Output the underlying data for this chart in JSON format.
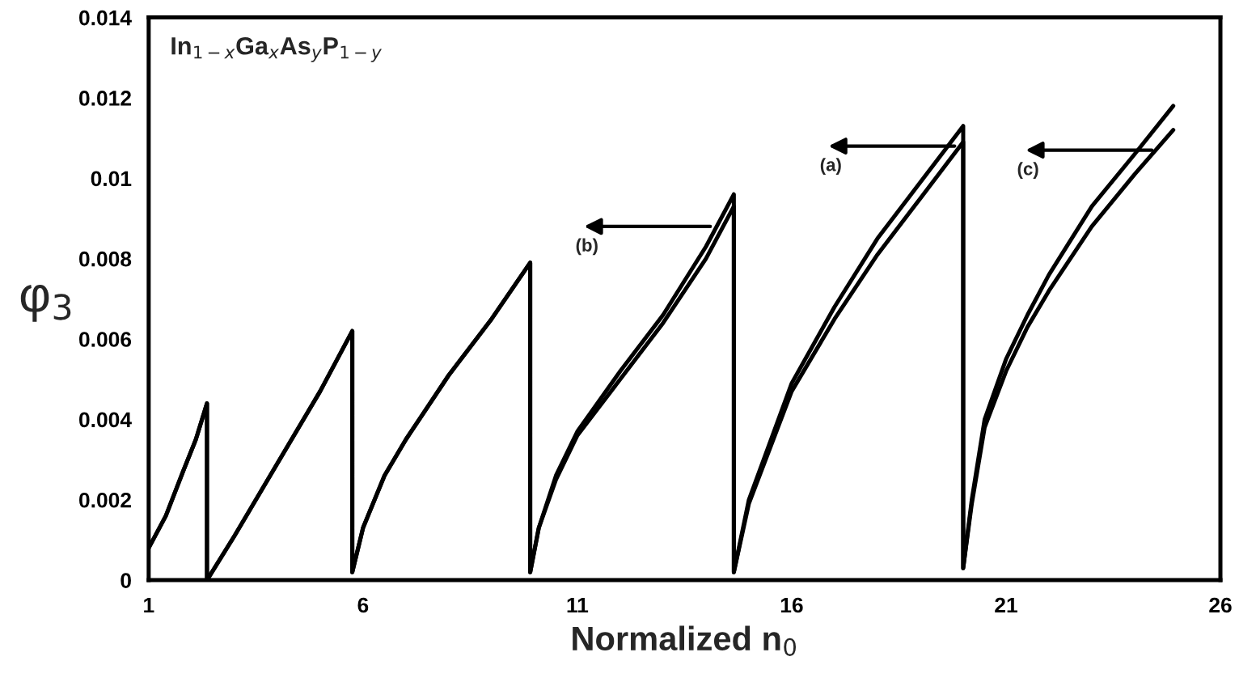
{
  "chart_data": {
    "type": "line",
    "xlabel": "Normalized n$_{0}$",
    "ylabel": "φ$_{3}$",
    "annotations": [
      "In$_{1−x}$Ga$_{x}$As$_{y}$P$_{1−y}$",
      {
        "text": "(a)",
        "x": 19.8,
        "y": 0.0108
      },
      {
        "text": "(b)",
        "x": 14.1,
        "y": 0.0088
      },
      {
        "text": "(c)",
        "x": 24.4,
        "y": 0.0107
      }
    ],
    "series": [
      {
        "color": "#000000",
        "x": [
          1,
          1.4,
          1.8,
          2.1,
          2.36,
          2.36,
          3,
          4,
          5,
          5.75,
          5.75,
          6,
          6.5,
          7,
          8,
          9,
          9.9,
          9.9,
          10.1,
          10.5,
          11,
          12,
          13,
          14,
          14.65,
          14.65,
          15,
          16,
          17,
          18,
          19,
          20,
          20,
          20.2,
          20.5,
          21,
          21.5,
          22,
          23,
          24,
          24.9
        ],
        "values": [
          0.0008,
          0.0016,
          0.0027,
          0.0035,
          0.0044,
          0,
          0.0011,
          0.0029,
          0.0047,
          0.0062,
          0.0002,
          0.0013,
          0.0026,
          0.0035,
          0.0051,
          0.0065,
          0.0079,
          0.0002,
          0.0013,
          0.0026,
          0.0037,
          0.0052,
          0.0066,
          0.0083,
          0.0096,
          0.0002,
          0.002,
          0.0049,
          0.0068,
          0.0085,
          0.0099,
          0.0113,
          0.0003,
          0.002,
          0.004,
          0.0055,
          0.0066,
          0.0076,
          0.0093,
          0.0106,
          0.0118
        ]
      },
      {
        "color": "#000000",
        "x": [
          1,
          1.4,
          1.8,
          2.1,
          2.36,
          2.36,
          3,
          4,
          5,
          5.75,
          5.75,
          6,
          6.5,
          7,
          8,
          9,
          9.9,
          9.9,
          10.1,
          10.5,
          11,
          12,
          13,
          14,
          14.65,
          14.65,
          15,
          16,
          17,
          18,
          19,
          20,
          20,
          20.2,
          20.5,
          21,
          21.5,
          22,
          23,
          24,
          24.9
        ],
        "values": [
          0.0008,
          0.0016,
          0.0027,
          0.0035,
          0.0044,
          0,
          0.0011,
          0.0029,
          0.0047,
          0.0062,
          0.0002,
          0.0013,
          0.0026,
          0.0035,
          0.0051,
          0.0065,
          0.0079,
          0.0002,
          0.0013,
          0.0025,
          0.0036,
          0.005,
          0.0064,
          0.008,
          0.0093,
          0.0002,
          0.0019,
          0.0047,
          0.0065,
          0.0081,
          0.0095,
          0.0109,
          0.0003,
          0.0019,
          0.0038,
          0.0052,
          0.0063,
          0.0072,
          0.0088,
          0.0101,
          0.0112
        ]
      }
    ],
    "xlim": [
      1,
      26
    ],
    "xticks": [
      1,
      6,
      11,
      16,
      21,
      26
    ],
    "ylim": [
      0,
      0.014
    ],
    "yticks": [
      0,
      0.002,
      0.004,
      0.006,
      0.008,
      0.01,
      0.012,
      0.014
    ],
    "grid": false,
    "legend": false,
    "marker": "none",
    "line_style": "solid"
  }
}
